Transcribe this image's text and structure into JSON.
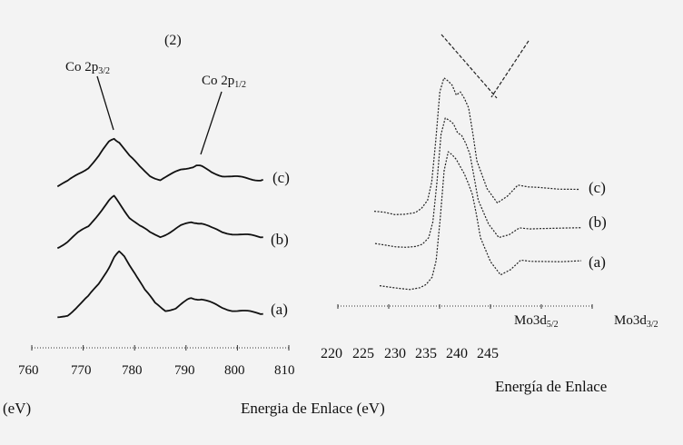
{
  "chart_data": [
    {
      "type": "line",
      "panel_label": "(2)",
      "xlabel": "Energia de Enlace (eV)",
      "xlim": [
        760,
        810
      ],
      "x_ticks": [
        "760",
        "770",
        "780",
        "790",
        "800",
        "810"
      ],
      "x_unit_left": "(eV)",
      "annotations": [
        {
          "main": "Co 2p",
          "sub": "3/2",
          "x": 776
        },
        {
          "main": "Co 2p",
          "sub": "1/2",
          "x": 792
        }
      ],
      "series": [
        {
          "name": "(c)",
          "x": [
            765,
            767,
            769,
            771,
            773,
            775,
            776,
            777,
            779,
            781,
            783,
            785,
            787,
            789,
            791,
            792,
            793,
            795,
            797,
            799,
            801,
            803,
            805
          ],
          "y": [
            0,
            0.08,
            0.22,
            0.35,
            0.55,
            0.8,
            0.88,
            0.82,
            0.55,
            0.35,
            0.2,
            0.12,
            0.2,
            0.3,
            0.36,
            0.38,
            0.35,
            0.26,
            0.2,
            0.17,
            0.15,
            0.13,
            0.12
          ]
        },
        {
          "name": "(b)",
          "x": [
            765,
            767,
            769,
            771,
            773,
            775,
            776,
            777,
            779,
            781,
            783,
            785,
            787,
            789,
            791,
            792,
            793,
            795,
            797,
            799,
            801,
            803,
            805
          ],
          "y": [
            0,
            0.1,
            0.25,
            0.38,
            0.62,
            0.85,
            0.92,
            0.82,
            0.55,
            0.38,
            0.26,
            0.2,
            0.28,
            0.38,
            0.45,
            0.46,
            0.43,
            0.34,
            0.28,
            0.25,
            0.22,
            0.2,
            0.18
          ]
        },
        {
          "name": "(a)",
          "x": [
            765,
            767,
            769,
            771,
            773,
            775,
            776,
            777,
            778,
            780,
            782,
            784,
            786,
            788,
            790,
            791,
            792,
            793,
            795,
            797,
            799,
            801,
            803,
            805
          ],
          "y": [
            0,
            0.05,
            0.18,
            0.32,
            0.52,
            0.78,
            0.92,
            1.0,
            0.95,
            0.7,
            0.42,
            0.22,
            0.12,
            0.15,
            0.25,
            0.3,
            0.3,
            0.28,
            0.22,
            0.16,
            0.12,
            0.1,
            0.08,
            0.06
          ]
        }
      ]
    },
    {
      "type": "line",
      "xlabel": "Energía de Enlace",
      "x_ticks": [
        "220",
        "225",
        "230",
        "235",
        "240",
        "245"
      ],
      "peak_labels": [
        {
          "main": "Mo3d",
          "sub": "5/2"
        },
        {
          "main": "Mo3d",
          "sub": "3/2"
        }
      ],
      "series": [
        {
          "name": "(c)",
          "x": [
            0,
            0.05,
            0.1,
            0.15,
            0.2,
            0.23,
            0.26,
            0.28,
            0.3,
            0.32,
            0.34,
            0.36,
            0.38,
            0.4,
            0.42,
            0.44,
            0.46,
            0.48,
            0.5,
            0.55,
            0.6,
            0.65,
            0.7,
            0.75,
            0.8,
            0.9,
            1.0
          ],
          "y": [
            0.05,
            0.04,
            0.02,
            0.02,
            0.03,
            0.06,
            0.12,
            0.25,
            0.55,
            0.9,
            1.0,
            0.98,
            0.95,
            0.88,
            0.9,
            0.85,
            0.78,
            0.6,
            0.4,
            0.2,
            0.1,
            0.06,
            0.05,
            0.04,
            0.04,
            0.03,
            0.03
          ]
        },
        {
          "name": "(b)",
          "x": [
            0,
            0.05,
            0.1,
            0.15,
            0.2,
            0.23,
            0.26,
            0.28,
            0.3,
            0.32,
            0.34,
            0.36,
            0.38,
            0.4,
            0.42,
            0.44,
            0.46,
            0.48,
            0.5,
            0.55,
            0.6,
            0.65,
            0.7,
            0.75,
            0.8,
            0.9,
            1.0
          ],
          "y": [
            0.04,
            0.03,
            0.02,
            0.02,
            0.03,
            0.05,
            0.1,
            0.22,
            0.52,
            0.88,
            1.0,
            0.98,
            0.95,
            0.88,
            0.86,
            0.8,
            0.72,
            0.55,
            0.38,
            0.2,
            0.1,
            0.06,
            0.05,
            0.04,
            0.04,
            0.04,
            0.04
          ]
        },
        {
          "name": "(a)",
          "x": [
            0,
            0.05,
            0.1,
            0.15,
            0.2,
            0.23,
            0.26,
            0.28,
            0.3,
            0.32,
            0.34,
            0.36,
            0.38,
            0.4,
            0.42,
            0.44,
            0.46,
            0.48,
            0.5,
            0.55,
            0.6,
            0.65,
            0.7,
            0.75,
            0.8,
            0.9,
            1.0
          ],
          "y": [
            0.03,
            0.02,
            0.01,
            0.0,
            0.01,
            0.03,
            0.08,
            0.2,
            0.5,
            0.86,
            1.0,
            0.98,
            0.95,
            0.9,
            0.85,
            0.78,
            0.7,
            0.55,
            0.38,
            0.2,
            0.1,
            0.05,
            0.03,
            0.02,
            0.02,
            0.02,
            0.03
          ]
        }
      ]
    }
  ]
}
